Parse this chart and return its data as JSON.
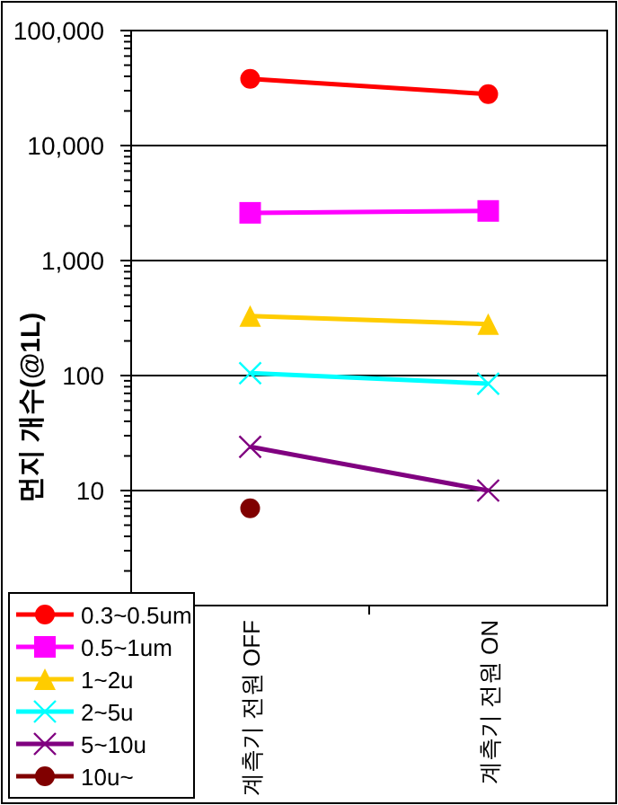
{
  "chart_data": {
    "type": "line",
    "ylabel": "먼지 개수(@1L)",
    "categories": [
      "계측기 전원 OFF",
      "계측기 전원 ON"
    ],
    "series": [
      {
        "name": "0.3~0.5um",
        "color": "#ff0000",
        "marker": "circle",
        "values": [
          38000,
          28000
        ]
      },
      {
        "name": "0.5~1um",
        "color": "#ff00ff",
        "marker": "square",
        "values": [
          2600,
          2700
        ]
      },
      {
        "name": "1~2u",
        "color": "#ffcc00",
        "marker": "triangle",
        "values": [
          330,
          280
        ]
      },
      {
        "name": "2~5u",
        "color": "#00ffff",
        "marker": "cross",
        "values": [
          105,
          85
        ]
      },
      {
        "name": "5~10u",
        "color": "#800080",
        "marker": "cross",
        "values": [
          24,
          10
        ]
      },
      {
        "name": "10u~",
        "color": "#800000",
        "marker": "circle",
        "values": [
          7,
          null
        ]
      }
    ],
    "log": "y",
    "ylim": [
      1,
      100000
    ],
    "yticks": [
      {
        "value": 10,
        "label": "10"
      },
      {
        "value": 100,
        "label": "100"
      },
      {
        "value": 1000,
        "label": "1,000"
      },
      {
        "value": 10000,
        "label": "10,000"
      },
      {
        "value": 100000,
        "label": "100,000"
      }
    ],
    "grid": "y",
    "legend": "bottom left"
  }
}
